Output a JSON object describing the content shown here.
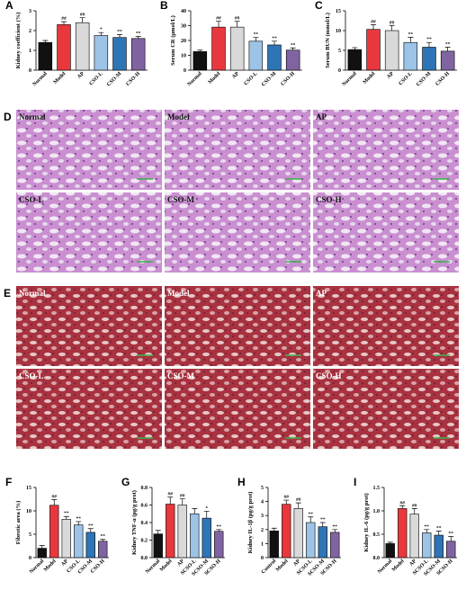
{
  "chart_data": [
    {
      "type": "bar",
      "panel": "A",
      "y_label": "Kidney coefficient (%)",
      "categories": [
        "Normal",
        "Model",
        "AP",
        "CSO-L",
        "CSO-M",
        "CSO-H"
      ],
      "values": [
        1.4,
        2.3,
        2.4,
        1.75,
        1.65,
        1.6
      ],
      "errors": [
        0.1,
        0.15,
        0.25,
        0.15,
        0.15,
        0.1
      ],
      "annotations": [
        null,
        "##",
        "##",
        "*",
        "**",
        "**"
      ],
      "colors": [
        "#111111",
        "#e8383d",
        "#d9d9d9",
        "#9dc3e6",
        "#2e75b6",
        "#8064a2"
      ],
      "ylim": [
        0,
        3
      ],
      "yticks": [
        0,
        1,
        2,
        3
      ]
    },
    {
      "type": "bar",
      "panel": "B",
      "y_label": "Serum CR (μmol/L)",
      "categories": [
        "Normal",
        "Model",
        "AP",
        "CSO-L",
        "CSO-M",
        "CSO-H"
      ],
      "values": [
        12.5,
        29,
        29,
        19.5,
        17,
        13.5
      ],
      "errors": [
        1,
        4,
        4,
        2.5,
        2.5,
        1.5
      ],
      "annotations": [
        null,
        "##",
        "##",
        "**",
        "**",
        "**"
      ],
      "colors": [
        "#111111",
        "#e8383d",
        "#d9d9d9",
        "#9dc3e6",
        "#2e75b6",
        "#8064a2"
      ],
      "ylim": [
        0,
        40
      ],
      "yticks": [
        0,
        10,
        20,
        30,
        40
      ]
    },
    {
      "type": "bar",
      "panel": "C",
      "y_label": "Serum BUN (mmol/L)",
      "categories": [
        "Normal",
        "Model",
        "AP",
        "CSO-L",
        "CSO-M",
        "CSO-H"
      ],
      "values": [
        5.2,
        10.3,
        10,
        7,
        5.8,
        4.8
      ],
      "errors": [
        0.5,
        1.2,
        1.3,
        1.3,
        1.2,
        1
      ],
      "annotations": [
        null,
        "##",
        "##",
        "**",
        "**",
        "**"
      ],
      "colors": [
        "#111111",
        "#e8383d",
        "#d9d9d9",
        "#9dc3e6",
        "#2e75b6",
        "#8064a2"
      ],
      "ylim": [
        0,
        15
      ],
      "yticks": [
        0,
        5,
        10,
        15
      ]
    },
    {
      "type": "bar",
      "panel": "F",
      "y_label": "Fibrotic area (%)",
      "categories": [
        "Normal",
        "Model",
        "AP",
        "CSO-L",
        "CSO-M",
        "CSO-H"
      ],
      "values": [
        2,
        11.2,
        8.2,
        7,
        5.4,
        3.5
      ],
      "errors": [
        0.6,
        1.2,
        0.6,
        0.7,
        0.8,
        0.4
      ],
      "annotations": [
        null,
        "##",
        "**",
        "**",
        "**",
        "**"
      ],
      "colors": [
        "#111111",
        "#e8383d",
        "#d9d9d9",
        "#9dc3e6",
        "#2e75b6",
        "#8064a2"
      ],
      "ylim": [
        0,
        15
      ],
      "yticks": [
        0,
        5,
        10,
        15
      ]
    },
    {
      "type": "bar",
      "panel": "G",
      "y_label": "Kidney TNF-α (pg/g prot)",
      "categories": [
        "Normal",
        "Model",
        "AP",
        "SCSO-L",
        "SCSO-M",
        "SCSO-H"
      ],
      "values": [
        0.27,
        0.61,
        0.6,
        0.5,
        0.45,
        0.3
      ],
      "errors": [
        0.04,
        0.08,
        0.07,
        0.06,
        0.08,
        0.02
      ],
      "annotations": [
        null,
        "##",
        "##",
        null,
        "*",
        "**"
      ],
      "colors": [
        "#111111",
        "#e8383d",
        "#d9d9d9",
        "#9dc3e6",
        "#2e75b6",
        "#8064a2"
      ],
      "ylim": [
        0,
        0.8
      ],
      "yticks": [
        {
          "value": 0,
          "label": "0.0"
        },
        {
          "value": 0.2,
          "label": "0.2"
        },
        {
          "value": 0.4,
          "label": "0.4"
        },
        {
          "value": 0.6,
          "label": "0.6"
        },
        {
          "value": 0.8,
          "label": "0.8"
        }
      ]
    },
    {
      "type": "bar",
      "panel": "H",
      "y_label": "Kidney IL-1β (pg/g prot)",
      "categories": [
        "Control",
        "Model",
        "AP",
        "SCSO-L",
        "SCSO-M",
        "SCSO-H"
      ],
      "values": [
        1.9,
        3.8,
        3.5,
        2.5,
        2.2,
        1.8
      ],
      "errors": [
        0.2,
        0.3,
        0.4,
        0.4,
        0.3,
        0.2
      ],
      "annotations": [
        null,
        "##",
        "##",
        "**",
        "**",
        "**"
      ],
      "colors": [
        "#111111",
        "#e8383d",
        "#d9d9d9",
        "#9dc3e6",
        "#2e75b6",
        "#8064a2"
      ],
      "ylim": [
        0,
        5
      ],
      "yticks": [
        0,
        1,
        2,
        3,
        4,
        5
      ]
    },
    {
      "type": "bar",
      "panel": "I",
      "y_label": "Kidney IL-6 (pg/g prot)",
      "categories": [
        "Normal",
        "Model",
        "AP",
        "SCSO-L",
        "SCSO-M",
        "SCSO-H"
      ],
      "values": [
        0.3,
        1.05,
        0.93,
        0.53,
        0.48,
        0.35
      ],
      "errors": [
        0.03,
        0.06,
        0.12,
        0.07,
        0.09,
        0.1
      ],
      "annotations": [
        null,
        "##",
        "##",
        "**",
        "**",
        "**"
      ],
      "colors": [
        "#111111",
        "#e8383d",
        "#d9d9d9",
        "#9dc3e6",
        "#2e75b6",
        "#8064a2"
      ],
      "ylim": [
        0,
        1.5
      ],
      "yticks": [
        {
          "value": 0,
          "label": "0.0"
        },
        {
          "value": 0.5,
          "label": "0.5"
        },
        {
          "value": 1,
          "label": "1.0"
        },
        {
          "value": 1.5,
          "label": "1.5"
        }
      ]
    }
  ],
  "histology": [
    {
      "panel": "D",
      "images": [
        "Normal",
        "Model",
        "AP",
        "CSO-L",
        "CSO-M",
        "CSO-H"
      ]
    },
    {
      "panel": "E",
      "images": [
        "Normal",
        "Model",
        "AP",
        "CSO-L",
        "CSO-M",
        "CSO-H"
      ]
    }
  ]
}
